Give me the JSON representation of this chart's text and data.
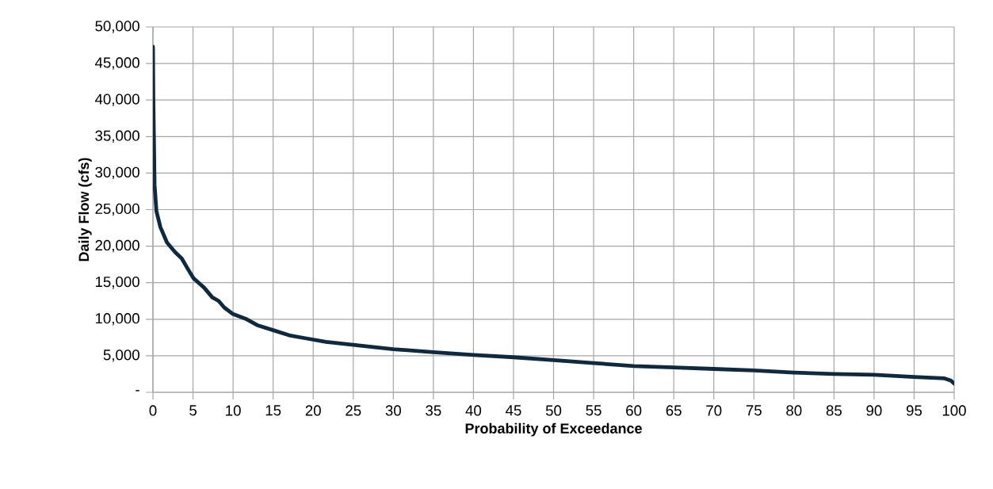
{
  "chart_data": {
    "type": "line",
    "xlabel": "Probability of Exceedance",
    "ylabel": "Daily Flow (cfs)",
    "series": [
      {
        "color": "#0f2a3f",
        "x": [
          0,
          0.05,
          0.2,
          0.43,
          0.93,
          1.75,
          2.75,
          3.6,
          4.4,
          5.07,
          6.4,
          7.4,
          8.2,
          8.9,
          10,
          11.7,
          13,
          15,
          17,
          19,
          21.6,
          25,
          30,
          35,
          40,
          45,
          50,
          55,
          60,
          65,
          70,
          75,
          80,
          85,
          90,
          95,
          98.8,
          99.6,
          100
        ],
        "values": [
          47300,
          40000,
          28400,
          24800,
          22600,
          20500,
          19200,
          18300,
          16800,
          15600,
          14300,
          13000,
          12500,
          11600,
          10700,
          10000,
          9200,
          8500,
          7800,
          7400,
          6900,
          6500,
          5900,
          5500,
          5100,
          4800,
          4400,
          4000,
          3600,
          3400,
          3200,
          3000,
          2700,
          2500,
          2400,
          2100,
          1900,
          1600,
          1200
        ]
      }
    ],
    "xlim": [
      0,
      100
    ],
    "ylim": [
      0,
      50000
    ],
    "xticks": [
      0,
      5,
      10,
      15,
      20,
      25,
      30,
      35,
      40,
      45,
      50,
      55,
      60,
      65,
      70,
      75,
      80,
      85,
      90,
      95,
      100
    ],
    "yticks": [
      {
        "value": 0,
        "label": "-"
      },
      {
        "value": 5000,
        "label": "5,000"
      },
      {
        "value": 10000,
        "label": "10,000"
      },
      {
        "value": 15000,
        "label": "15,000"
      },
      {
        "value": 20000,
        "label": "20,000"
      },
      {
        "value": 25000,
        "label": "25,000"
      },
      {
        "value": 30000,
        "label": "30,000"
      },
      {
        "value": 35000,
        "label": "35,000"
      },
      {
        "value": 40000,
        "label": "40,000"
      },
      {
        "value": 45000,
        "label": "45,000"
      },
      {
        "value": 50000,
        "label": "50,000"
      }
    ],
    "grid": true,
    "marker": "none",
    "line_style": "solid"
  }
}
